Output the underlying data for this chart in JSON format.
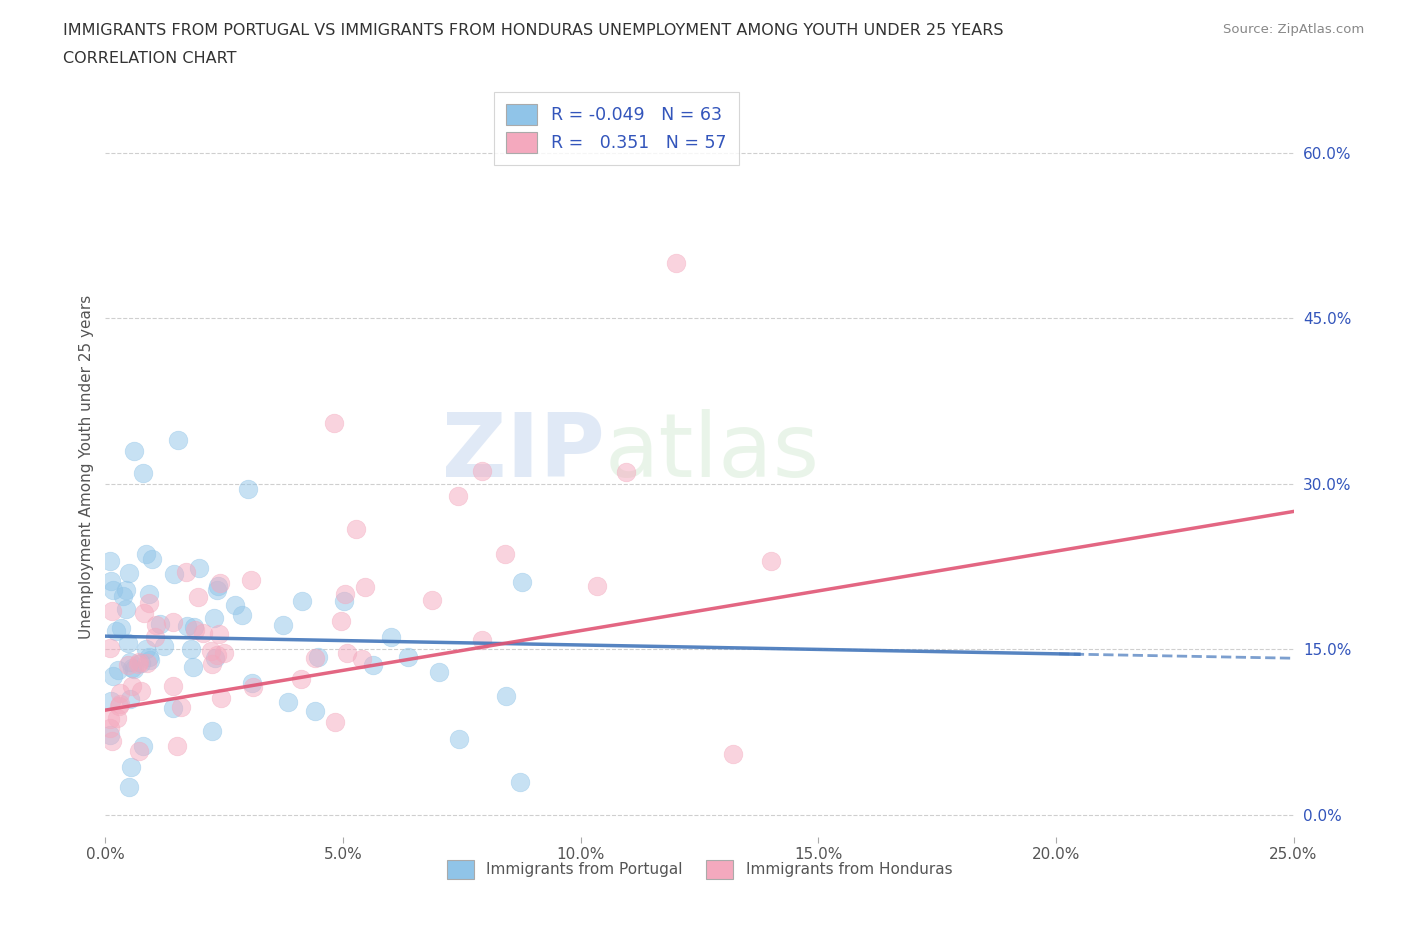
{
  "title_line1": "IMMIGRANTS FROM PORTUGAL VS IMMIGRANTS FROM HONDURAS UNEMPLOYMENT AMONG YOUTH UNDER 25 YEARS",
  "title_line2": "CORRELATION CHART",
  "source": "Source: ZipAtlas.com",
  "ylabel": "Unemployment Among Youth under 25 years",
  "xlim": [
    0.0,
    0.25
  ],
  "ylim": [
    -0.02,
    0.65
  ],
  "xticks": [
    0.0,
    0.05,
    0.1,
    0.15,
    0.2,
    0.25
  ],
  "yticks_right": [
    0.0,
    0.15,
    0.3,
    0.45,
    0.6
  ],
  "ytick_labels_right": [
    "0.0%",
    "15.0%",
    "30.0%",
    "45.0%",
    "60.0%"
  ],
  "xtick_labels": [
    "0.0%",
    "5.0%",
    "10.0%",
    "15.0%",
    "20.0%",
    "25.0%"
  ],
  "color_portugal": "#90c4e8",
  "color_honduras": "#f4a9be",
  "color_portugal_line": "#4477bb",
  "color_honduras_line": "#e05575",
  "watermark_zip": "ZIP",
  "watermark_atlas": "atlas",
  "legend_R_portugal": "-0.049",
  "legend_N_portugal": "63",
  "legend_R_honduras": "0.351",
  "legend_N_honduras": "57",
  "background_color": "#ffffff",
  "grid_color": "#bbbbbb",
  "title_color": "#333333",
  "axis_color": "#555555",
  "legend_value_color": "#3355bb",
  "legend_label_color": "#333333"
}
